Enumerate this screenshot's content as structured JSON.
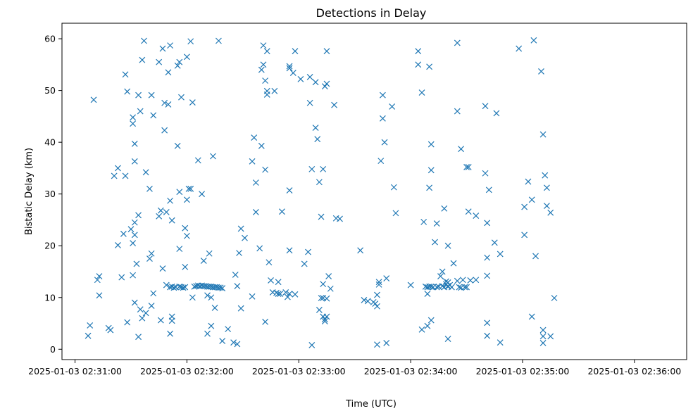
{
  "chart_data": {
    "type": "scatter",
    "title": "Detections in Delay",
    "xlabel": "Time (UTC)",
    "ylabel": "Bistatic Delay (km)",
    "marker": "x",
    "color": "#1f77b4",
    "grid": false,
    "legend": "none",
    "x_format": "%Y-%m-%d %H:%M:%S",
    "xlim": [
      "2025-01-03 02:30:53",
      "2025-01-03 02:36:28"
    ],
    "ylim": [
      -2,
      63
    ],
    "xticks": [
      "2025-01-03 02:31:00",
      "2025-01-03 02:32:00",
      "2025-01-03 02:33:00",
      "2025-01-03 02:34:00",
      "2025-01-03 02:35:00",
      "2025-01-03 02:36:00"
    ],
    "yticks": [
      0,
      10,
      20,
      30,
      40,
      50,
      60
    ],
    "points": [
      [
        "2025-01-03 02:31:07",
        2.6
      ],
      [
        "2025-01-03 02:31:08",
        4.6
      ],
      [
        "2025-01-03 02:31:10",
        48.2
      ],
      [
        "2025-01-03 02:31:12",
        13.4
      ],
      [
        "2025-01-03 02:31:13",
        14.1
      ],
      [
        "2025-01-03 02:31:13",
        10.4
      ],
      [
        "2025-01-03 02:31:18",
        4.1
      ],
      [
        "2025-01-03 02:31:19",
        3.7
      ],
      [
        "2025-01-03 02:31:21",
        33.5
      ],
      [
        "2025-01-03 02:31:23",
        20.1
      ],
      [
        "2025-01-03 02:31:23",
        35.0
      ],
      [
        "2025-01-03 02:31:25",
        13.9
      ],
      [
        "2025-01-03 02:31:26",
        22.3
      ],
      [
        "2025-01-03 02:31:27",
        53.1
      ],
      [
        "2025-01-03 02:31:27",
        33.5
      ],
      [
        "2025-01-03 02:31:28",
        5.2
      ],
      [
        "2025-01-03 02:31:28",
        49.8
      ],
      [
        "2025-01-03 02:31:30",
        23.2
      ],
      [
        "2025-01-03 02:31:31",
        43.6
      ],
      [
        "2025-01-03 02:31:31",
        44.8
      ],
      [
        "2025-01-03 02:31:31",
        20.5
      ],
      [
        "2025-01-03 02:31:31",
        14.3
      ],
      [
        "2025-01-03 02:31:32",
        39.7
      ],
      [
        "2025-01-03 02:31:32",
        36.3
      ],
      [
        "2025-01-03 02:31:32",
        24.5
      ],
      [
        "2025-01-03 02:31:32",
        22.1
      ],
      [
        "2025-01-03 02:31:32",
        9.0
      ],
      [
        "2025-01-03 02:31:33",
        16.5
      ],
      [
        "2025-01-03 02:31:34",
        25.9
      ],
      [
        "2025-01-03 02:31:34",
        49.1
      ],
      [
        "2025-01-03 02:31:34",
        2.4
      ],
      [
        "2025-01-03 02:31:35",
        7.7
      ],
      [
        "2025-01-03 02:31:35",
        46.0
      ],
      [
        "2025-01-03 02:31:36",
        6.0
      ],
      [
        "2025-01-03 02:31:36",
        55.9
      ],
      [
        "2025-01-03 02:31:37",
        59.6
      ],
      [
        "2025-01-03 02:31:38",
        34.2
      ],
      [
        "2025-01-03 02:31:38",
        7.0
      ],
      [
        "2025-01-03 02:31:40",
        31.0
      ],
      [
        "2025-01-03 02:31:40",
        17.5
      ],
      [
        "2025-01-03 02:31:41",
        49.1
      ],
      [
        "2025-01-03 02:31:41",
        18.5
      ],
      [
        "2025-01-03 02:31:41",
        8.4
      ],
      [
        "2025-01-03 02:31:42",
        10.8
      ],
      [
        "2025-01-03 02:31:42",
        45.2
      ],
      [
        "2025-01-03 02:31:45",
        55.5
      ],
      [
        "2025-01-03 02:31:45",
        25.7
      ],
      [
        "2025-01-03 02:31:46",
        26.8
      ],
      [
        "2025-01-03 02:31:46",
        5.6
      ],
      [
        "2025-01-03 02:31:47",
        58.1
      ],
      [
        "2025-01-03 02:31:47",
        15.6
      ],
      [
        "2025-01-03 02:31:48",
        42.3
      ],
      [
        "2025-01-03 02:31:48",
        47.6
      ],
      [
        "2025-01-03 02:31:49",
        26.5
      ],
      [
        "2025-01-03 02:31:49",
        12.4
      ],
      [
        "2025-01-03 02:31:50",
        47.3
      ],
      [
        "2025-01-03 02:31:50",
        53.5
      ],
      [
        "2025-01-03 02:31:51",
        28.7
      ],
      [
        "2025-01-03 02:31:51",
        58.7
      ],
      [
        "2025-01-03 02:31:51",
        3.0
      ],
      [
        "2025-01-03 02:31:52",
        24.9
      ],
      [
        "2025-01-03 02:31:52",
        6.3
      ],
      [
        "2025-01-03 02:31:52",
        5.5
      ],
      [
        "2025-01-03 02:31:51",
        12.0
      ],
      [
        "2025-01-03 02:31:52",
        12.1
      ],
      [
        "2025-01-03 02:31:53",
        11.9
      ],
      [
        "2025-01-03 02:31:54",
        12.0
      ],
      [
        "2025-01-03 02:31:55",
        39.3
      ],
      [
        "2025-01-03 02:31:55",
        54.8
      ],
      [
        "2025-01-03 02:31:56",
        55.5
      ],
      [
        "2025-01-03 02:31:56",
        30.4
      ],
      [
        "2025-01-03 02:31:56",
        19.4
      ],
      [
        "2025-01-03 02:31:56",
        12.1
      ],
      [
        "2025-01-03 02:31:57",
        48.7
      ],
      [
        "2025-01-03 02:31:57",
        12.0
      ],
      [
        "2025-01-03 02:31:58",
        11.9
      ],
      [
        "2025-01-03 02:31:59",
        23.4
      ],
      [
        "2025-01-03 02:31:59",
        15.9
      ],
      [
        "2025-01-03 02:31:59",
        12.0
      ],
      [
        "2025-01-03 02:32:00",
        28.9
      ],
      [
        "2025-01-03 02:32:00",
        21.9
      ],
      [
        "2025-01-03 02:32:00",
        56.5
      ],
      [
        "2025-01-03 02:32:01",
        31.0
      ],
      [
        "2025-01-03 02:32:02",
        31.0
      ],
      [
        "2025-01-03 02:32:02",
        59.5
      ],
      [
        "2025-01-03 02:32:03",
        47.7
      ],
      [
        "2025-01-03 02:32:03",
        10.0
      ],
      [
        "2025-01-03 02:32:04",
        12.1
      ],
      [
        "2025-01-03 02:32:05",
        12.2
      ],
      [
        "2025-01-03 02:32:06",
        12.3
      ],
      [
        "2025-01-03 02:32:06",
        36.5
      ],
      [
        "2025-01-03 02:32:07",
        12.2
      ],
      [
        "2025-01-03 02:32:08",
        12.3
      ],
      [
        "2025-01-03 02:32:08",
        30.0
      ],
      [
        "2025-01-03 02:32:09",
        12.2
      ],
      [
        "2025-01-03 02:32:09",
        17.1
      ],
      [
        "2025-01-03 02:32:10",
        12.2
      ],
      [
        "2025-01-03 02:32:11",
        12.1
      ],
      [
        "2025-01-03 02:32:11",
        10.4
      ],
      [
        "2025-01-03 02:32:11",
        3.0
      ],
      [
        "2025-01-03 02:32:12",
        12.1
      ],
      [
        "2025-01-03 02:32:12",
        18.5
      ],
      [
        "2025-01-03 02:32:13",
        12.1
      ],
      [
        "2025-01-03 02:32:13",
        4.5
      ],
      [
        "2025-01-03 02:32:13",
        10.0
      ],
      [
        "2025-01-03 02:32:14",
        12.0
      ],
      [
        "2025-01-03 02:32:14",
        37.3
      ],
      [
        "2025-01-03 02:32:15",
        12.0
      ],
      [
        "2025-01-03 02:32:15",
        8.0
      ],
      [
        "2025-01-03 02:32:16",
        12.0
      ],
      [
        "2025-01-03 02:32:17",
        11.9
      ],
      [
        "2025-01-03 02:32:17",
        59.6
      ],
      [
        "2025-01-03 02:32:18",
        11.9
      ],
      [
        "2025-01-03 02:32:19",
        11.8
      ],
      [
        "2025-01-03 02:32:19",
        1.6
      ],
      [
        "2025-01-03 02:32:22",
        3.9
      ],
      [
        "2025-01-03 02:32:25",
        1.3
      ],
      [
        "2025-01-03 02:32:26",
        14.4
      ],
      [
        "2025-01-03 02:32:27",
        1.0
      ],
      [
        "2025-01-03 02:32:27",
        12.2
      ],
      [
        "2025-01-03 02:32:28",
        18.6
      ],
      [
        "2025-01-03 02:32:29",
        23.3
      ],
      [
        "2025-01-03 02:32:29",
        7.9
      ],
      [
        "2025-01-03 02:32:31",
        21.5
      ],
      [
        "2025-01-03 02:32:35",
        36.3
      ],
      [
        "2025-01-03 02:32:35",
        10.2
      ],
      [
        "2025-01-03 02:32:36",
        40.9
      ],
      [
        "2025-01-03 02:32:37",
        32.2
      ],
      [
        "2025-01-03 02:32:37",
        26.5
      ],
      [
        "2025-01-03 02:32:39",
        19.5
      ],
      [
        "2025-01-03 02:32:40",
        54.0
      ],
      [
        "2025-01-03 02:32:40",
        39.3
      ],
      [
        "2025-01-03 02:32:41",
        58.7
      ],
      [
        "2025-01-03 02:32:41",
        55.0
      ],
      [
        "2025-01-03 02:32:42",
        51.9
      ],
      [
        "2025-01-03 02:32:42",
        34.7
      ],
      [
        "2025-01-03 02:32:42",
        5.3
      ],
      [
        "2025-01-03 02:32:43",
        57.6
      ],
      [
        "2025-01-03 02:32:43",
        49.9
      ],
      [
        "2025-01-03 02:32:43",
        49.2
      ],
      [
        "2025-01-03 02:32:44",
        16.8
      ],
      [
        "2025-01-03 02:32:45",
        13.3
      ],
      [
        "2025-01-03 02:32:46",
        11.0
      ],
      [
        "2025-01-03 02:32:47",
        49.9
      ],
      [
        "2025-01-03 02:32:48",
        10.9
      ],
      [
        "2025-01-03 02:32:49",
        13.0
      ],
      [
        "2025-01-03 02:32:49",
        10.7
      ],
      [
        "2025-01-03 02:32:50",
        10.7
      ],
      [
        "2025-01-03 02:32:51",
        26.6
      ],
      [
        "2025-01-03 02:32:53",
        11.0
      ],
      [
        "2025-01-03 02:32:54",
        10.1
      ],
      [
        "2025-01-03 02:32:55",
        54.7
      ],
      [
        "2025-01-03 02:32:55",
        54.3
      ],
      [
        "2025-01-03 02:32:55",
        30.7
      ],
      [
        "2025-01-03 02:32:55",
        19.1
      ],
      [
        "2025-01-03 02:32:55",
        10.7
      ],
      [
        "2025-01-03 02:32:57",
        53.4
      ],
      [
        "2025-01-03 02:32:58",
        57.6
      ],
      [
        "2025-01-03 02:32:58",
        10.6
      ],
      [
        "2025-01-03 02:33:01",
        52.2
      ],
      [
        "2025-01-03 02:33:03",
        16.5
      ],
      [
        "2025-01-03 02:33:05",
        18.8
      ],
      [
        "2025-01-03 02:33:06",
        47.6
      ],
      [
        "2025-01-03 02:33:06",
        52.6
      ],
      [
        "2025-01-03 02:33:07",
        34.8
      ],
      [
        "2025-01-03 02:33:07",
        0.8
      ],
      [
        "2025-01-03 02:33:09",
        51.6
      ],
      [
        "2025-01-03 02:33:09",
        42.8
      ],
      [
        "2025-01-03 02:33:10",
        40.6
      ],
      [
        "2025-01-03 02:33:11",
        32.3
      ],
      [
        "2025-01-03 02:33:11",
        7.6
      ],
      [
        "2025-01-03 02:33:12",
        25.6
      ],
      [
        "2025-01-03 02:33:12",
        9.9
      ],
      [
        "2025-01-03 02:33:13",
        6.3
      ],
      [
        "2025-01-03 02:33:13",
        9.9
      ],
      [
        "2025-01-03 02:33:13",
        12.6
      ],
      [
        "2025-01-03 02:33:13",
        34.8
      ],
      [
        "2025-01-03 02:33:14",
        50.8
      ],
      [
        "2025-01-03 02:33:14",
        5.8
      ],
      [
        "2025-01-03 02:33:14",
        5.4
      ],
      [
        "2025-01-03 02:33:15",
        51.3
      ],
      [
        "2025-01-03 02:33:15",
        9.8
      ],
      [
        "2025-01-03 02:33:15",
        6.3
      ],
      [
        "2025-01-03 02:33:15",
        57.6
      ],
      [
        "2025-01-03 02:33:16",
        14.1
      ],
      [
        "2025-01-03 02:33:17",
        11.7
      ],
      [
        "2025-01-03 02:33:19",
        47.2
      ],
      [
        "2025-01-03 02:33:20",
        25.3
      ],
      [
        "2025-01-03 02:33:22",
        25.2
      ],
      [
        "2025-01-03 02:33:33",
        19.1
      ],
      [
        "2025-01-03 02:33:35",
        9.5
      ],
      [
        "2025-01-03 02:33:37",
        9.3
      ],
      [
        "2025-01-03 02:33:40",
        9.1
      ],
      [
        "2025-01-03 02:33:41",
        8.8
      ],
      [
        "2025-01-03 02:33:42",
        8.3
      ],
      [
        "2025-01-03 02:33:42",
        10.5
      ],
      [
        "2025-01-03 02:33:42",
        0.9
      ],
      [
        "2025-01-03 02:33:43",
        12.5
      ],
      [
        "2025-01-03 02:33:43",
        13.0
      ],
      [
        "2025-01-03 02:33:44",
        36.4
      ],
      [
        "2025-01-03 02:33:45",
        49.1
      ],
      [
        "2025-01-03 02:33:45",
        44.6
      ],
      [
        "2025-01-03 02:33:46",
        40.0
      ],
      [
        "2025-01-03 02:33:47",
        13.7
      ],
      [
        "2025-01-03 02:33:47",
        1.2
      ],
      [
        "2025-01-03 02:33:50",
        46.9
      ],
      [
        "2025-01-03 02:33:51",
        31.3
      ],
      [
        "2025-01-03 02:33:52",
        26.3
      ],
      [
        "2025-01-03 02:34:00",
        12.4
      ],
      [
        "2025-01-03 02:34:04",
        55.0
      ],
      [
        "2025-01-03 02:34:04",
        57.6
      ],
      [
        "2025-01-03 02:34:06",
        49.6
      ],
      [
        "2025-01-03 02:34:06",
        3.8
      ],
      [
        "2025-01-03 02:34:07",
        24.6
      ],
      [
        "2025-01-03 02:34:08",
        12.1
      ],
      [
        "2025-01-03 02:34:09",
        12.0
      ],
      [
        "2025-01-03 02:34:09",
        10.7
      ],
      [
        "2025-01-03 02:34:09",
        4.5
      ],
      [
        "2025-01-03 02:34:10",
        12.1
      ],
      [
        "2025-01-03 02:34:10",
        31.2
      ],
      [
        "2025-01-03 02:34:10",
        54.6
      ],
      [
        "2025-01-03 02:34:11",
        39.6
      ],
      [
        "2025-01-03 02:34:11",
        34.6
      ],
      [
        "2025-01-03 02:34:11",
        12.1
      ],
      [
        "2025-01-03 02:34:11",
        5.6
      ],
      [
        "2025-01-03 02:34:12",
        12.0
      ],
      [
        "2025-01-03 02:34:13",
        20.7
      ],
      [
        "2025-01-03 02:34:14",
        24.3
      ],
      [
        "2025-01-03 02:34:14",
        12.0
      ],
      [
        "2025-01-03 02:34:15",
        12.1
      ],
      [
        "2025-01-03 02:34:16",
        14.1
      ],
      [
        "2025-01-03 02:34:17",
        12.2
      ],
      [
        "2025-01-03 02:34:17",
        15.0
      ],
      [
        "2025-01-03 02:34:18",
        27.2
      ],
      [
        "2025-01-03 02:34:18",
        12.0
      ],
      [
        "2025-01-03 02:34:19",
        12.6
      ],
      [
        "2025-01-03 02:34:19",
        13.1
      ],
      [
        "2025-01-03 02:34:20",
        12.2
      ],
      [
        "2025-01-03 02:34:20",
        12.9
      ],
      [
        "2025-01-03 02:34:20",
        12.1
      ],
      [
        "2025-01-03 02:34:20",
        20.0
      ],
      [
        "2025-01-03 02:34:20",
        2.0
      ],
      [
        "2025-01-03 02:34:21",
        12.4
      ],
      [
        "2025-01-03 02:34:22",
        12.0
      ],
      [
        "2025-01-03 02:34:23",
        16.6
      ],
      [
        "2025-01-03 02:34:25",
        59.2
      ],
      [
        "2025-01-03 02:34:25",
        46.0
      ],
      [
        "2025-01-03 02:34:25",
        13.2
      ],
      [
        "2025-01-03 02:34:26",
        12.0
      ],
      [
        "2025-01-03 02:34:27",
        38.7
      ],
      [
        "2025-01-03 02:34:27",
        11.9
      ],
      [
        "2025-01-03 02:34:28",
        13.4
      ],
      [
        "2025-01-03 02:34:29",
        12.0
      ],
      [
        "2025-01-03 02:34:30",
        12.0
      ],
      [
        "2025-01-03 02:34:30",
        35.2
      ],
      [
        "2025-01-03 02:34:31",
        35.2
      ],
      [
        "2025-01-03 02:34:31",
        26.6
      ],
      [
        "2025-01-03 02:34:32",
        13.3
      ],
      [
        "2025-01-03 02:34:35",
        25.8
      ],
      [
        "2025-01-03 02:34:35",
        13.4
      ],
      [
        "2025-01-03 02:34:40",
        47.0
      ],
      [
        "2025-01-03 02:34:40",
        34.0
      ],
      [
        "2025-01-03 02:34:41",
        24.4
      ],
      [
        "2025-01-03 02:34:41",
        17.7
      ],
      [
        "2025-01-03 02:34:41",
        14.2
      ],
      [
        "2025-01-03 02:34:41",
        5.1
      ],
      [
        "2025-01-03 02:34:42",
        30.8
      ],
      [
        "2025-01-03 02:34:41",
        2.6
      ],
      [
        "2025-01-03 02:34:45",
        20.6
      ],
      [
        "2025-01-03 02:34:46",
        45.6
      ],
      [
        "2025-01-03 02:34:48",
        18.4
      ],
      [
        "2025-01-03 02:34:48",
        1.3
      ],
      [
        "2025-01-03 02:34:58",
        58.1
      ],
      [
        "2025-01-03 02:35:01",
        22.1
      ],
      [
        "2025-01-03 02:35:01",
        27.5
      ],
      [
        "2025-01-03 02:35:03",
        32.4
      ],
      [
        "2025-01-03 02:35:05",
        28.9
      ],
      [
        "2025-01-03 02:35:05",
        6.3
      ],
      [
        "2025-01-03 02:35:06",
        59.7
      ],
      [
        "2025-01-03 02:35:07",
        18.0
      ],
      [
        "2025-01-03 02:35:10",
        53.7
      ],
      [
        "2025-01-03 02:35:11",
        41.5
      ],
      [
        "2025-01-03 02:35:11",
        3.7
      ],
      [
        "2025-01-03 02:35:11",
        2.5
      ],
      [
        "2025-01-03 02:35:11",
        1.2
      ],
      [
        "2025-01-03 02:35:12",
        33.6
      ],
      [
        "2025-01-03 02:35:13",
        31.2
      ],
      [
        "2025-01-03 02:35:13",
        27.7
      ],
      [
        "2025-01-03 02:35:15",
        26.4
      ],
      [
        "2025-01-03 02:35:15",
        2.5
      ],
      [
        "2025-01-03 02:35:17",
        9.9
      ]
    ]
  }
}
